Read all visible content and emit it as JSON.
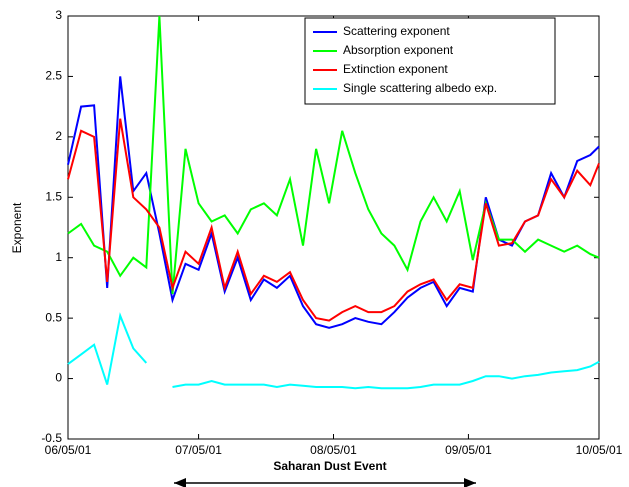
{
  "chart_data": {
    "type": "line",
    "ylabel": "Exponent",
    "annotation": "Saharan Dust Event",
    "x": [
      "2001-06-05",
      "2001-06-08",
      "2001-06-11",
      "2001-06-14",
      "2001-06-17",
      "2001-06-20",
      "2001-06-23",
      "2001-06-26",
      "2001-06-29",
      "2001-07-02",
      "2001-07-05",
      "2001-07-08",
      "2001-07-11",
      "2001-07-14",
      "2001-07-17",
      "2001-07-20",
      "2001-07-23",
      "2001-07-26",
      "2001-07-29",
      "2001-08-01",
      "2001-08-04",
      "2001-08-07",
      "2001-08-10",
      "2001-08-13",
      "2001-08-16",
      "2001-08-19",
      "2001-08-22",
      "2001-08-25",
      "2001-08-28",
      "2001-08-31",
      "2001-09-03",
      "2001-09-06",
      "2001-09-09",
      "2001-09-12",
      "2001-09-15",
      "2001-09-18",
      "2001-09-21",
      "2001-09-24",
      "2001-09-27",
      "2001-09-30",
      "2001-10-03",
      "2001-10-05"
    ],
    "series": [
      {
        "name": "Scattering exponent",
        "color": "#0000ff",
        "values": [
          1.77,
          2.25,
          2.26,
          0.75,
          2.5,
          1.55,
          1.7,
          1.2,
          0.65,
          0.95,
          0.9,
          1.2,
          0.72,
          1.0,
          0.65,
          0.82,
          0.75,
          0.85,
          0.6,
          0.45,
          0.42,
          0.45,
          0.5,
          0.47,
          0.45,
          0.55,
          0.67,
          0.75,
          0.8,
          0.6,
          0.75,
          0.72,
          1.5,
          1.15,
          1.1,
          1.3,
          1.35,
          1.7,
          1.5,
          1.8,
          1.85,
          1.92
        ]
      },
      {
        "name": "Absorption exponent",
        "color": "#00ff00",
        "values": [
          1.2,
          1.28,
          1.1,
          1.05,
          0.85,
          1.0,
          0.92,
          3.0,
          0.7,
          1.9,
          1.45,
          1.3,
          1.35,
          1.2,
          1.4,
          1.45,
          1.35,
          1.65,
          1.1,
          1.9,
          1.45,
          2.05,
          1.7,
          1.4,
          1.2,
          1.1,
          0.9,
          1.3,
          1.5,
          1.3,
          1.55,
          0.98,
          1.45,
          1.15,
          1.15,
          1.05,
          1.15,
          1.1,
          1.05,
          1.1,
          1.03,
          1.0
        ]
      },
      {
        "name": "Extinction exponent",
        "color": "#ff0000",
        "values": [
          1.65,
          2.05,
          2.0,
          0.8,
          2.15,
          1.5,
          1.4,
          1.25,
          0.75,
          1.05,
          0.95,
          1.25,
          0.75,
          1.05,
          0.7,
          0.85,
          0.8,
          0.88,
          0.65,
          0.5,
          0.48,
          0.55,
          0.6,
          0.55,
          0.55,
          0.6,
          0.72,
          0.78,
          0.82,
          0.65,
          0.78,
          0.75,
          1.45,
          1.1,
          1.12,
          1.3,
          1.35,
          1.65,
          1.5,
          1.72,
          1.6,
          1.78
        ]
      },
      {
        "name": "Single scattering albedo exp.",
        "color": "#00ffff",
        "values": [
          0.12,
          0.2,
          0.28,
          -0.05,
          0.52,
          0.25,
          0.13,
          null,
          -0.07,
          -0.05,
          -0.05,
          -0.02,
          -0.05,
          -0.05,
          -0.05,
          -0.05,
          -0.07,
          -0.05,
          -0.06,
          -0.07,
          -0.07,
          -0.07,
          -0.08,
          -0.07,
          -0.08,
          -0.08,
          -0.08,
          -0.07,
          -0.05,
          -0.05,
          -0.05,
          -0.02,
          0.02,
          0.02,
          0.0,
          0.02,
          0.03,
          0.05,
          0.06,
          0.07,
          0.1,
          0.14
        ]
      }
    ],
    "xlim": [
      "2001-06-05",
      "2001-10-05"
    ],
    "xticks": [
      {
        "value": "2001-06-05",
        "label": "06/05/01"
      },
      {
        "value": "2001-07-05",
        "label": "07/05/01"
      },
      {
        "value": "2001-08-05",
        "label": "08/05/01"
      },
      {
        "value": "2001-09-05",
        "label": "09/05/01"
      },
      {
        "value": "2001-10-05",
        "label": "10/05/01"
      }
    ],
    "ylim": [
      -0.5,
      3
    ],
    "yticks": [
      -0.5,
      0,
      0.5,
      1,
      1.5,
      2,
      2.5,
      3
    ],
    "grid": false,
    "legend": "upper right"
  }
}
